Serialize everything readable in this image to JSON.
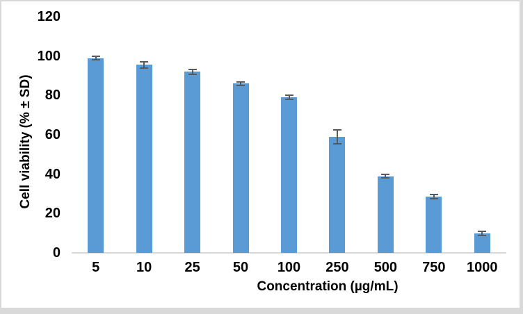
{
  "chart_data": {
    "type": "bar",
    "title": "",
    "xlabel": "Concentration (µg/mL)",
    "ylabel": "Cell viability (% ± SD)",
    "categories": [
      "5",
      "10",
      "25",
      "50",
      "100",
      "250",
      "500",
      "750",
      "1000"
    ],
    "values": [
      99,
      95.5,
      92,
      86,
      79,
      59,
      39,
      28.5,
      10
    ],
    "errors": [
      1,
      1.5,
      1.3,
      1,
      1,
      3.5,
      1,
      1,
      1
    ],
    "ylim": [
      0,
      120
    ],
    "yticks": [
      0,
      20,
      40,
      60,
      80,
      100,
      120
    ],
    "grid": false,
    "legend": "none",
    "colors": {
      "bar": "#5B9BD5",
      "error_bar": "#595959",
      "axis_line": "#D9D9D9",
      "label_text": "#000000",
      "frame_background": "#D9D9D9",
      "chart_background": "#FFFFFF"
    }
  }
}
